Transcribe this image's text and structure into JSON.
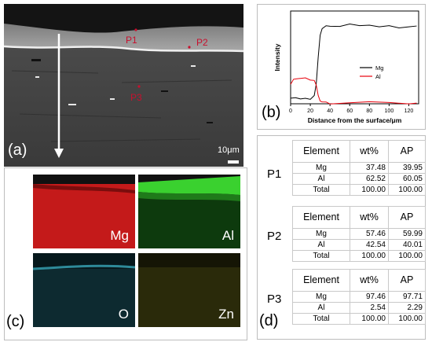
{
  "panel_a": {
    "letter": "(a)",
    "points": [
      "P1",
      "P2",
      "P3"
    ],
    "scale_bar": "10μm"
  },
  "panel_b": {
    "letter": "(b)"
  },
  "chart_data": {
    "type": "line",
    "xlabel": "Distance from the surface/μm",
    "ylabel": "Intensity",
    "xlim": [
      0,
      130
    ],
    "xticks": [
      0,
      20,
      40,
      60,
      80,
      100,
      120
    ],
    "legend_position": "center-right",
    "series": [
      {
        "name": "Mg",
        "color": "#000000",
        "x": [
          0,
          5,
          10,
          15,
          20,
          24,
          26,
          28,
          30,
          32,
          36,
          40,
          50,
          60,
          70,
          80,
          90,
          100,
          110,
          120,
          128
        ],
        "y": [
          0.06,
          0.07,
          0.06,
          0.07,
          0.06,
          0.08,
          0.2,
          0.5,
          0.75,
          0.82,
          0.83,
          0.84,
          0.83,
          0.85,
          0.83,
          0.84,
          0.83,
          0.85,
          0.83,
          0.84,
          0.83
        ]
      },
      {
        "name": "Al",
        "color": "#e8000b",
        "x": [
          0,
          3,
          6,
          10,
          15,
          20,
          24,
          26,
          28,
          30,
          32,
          36,
          40,
          60,
          80,
          100,
          120,
          128
        ],
        "y": [
          0.2,
          0.27,
          0.28,
          0.27,
          0.28,
          0.26,
          0.24,
          0.2,
          0.1,
          0.04,
          0.02,
          0.01,
          0.01,
          0.01,
          0.01,
          0.01,
          0.01,
          0.01
        ]
      }
    ]
  },
  "panel_c": {
    "letter": "(c)",
    "maps": [
      {
        "element": "Mg",
        "color": "#c41a1a"
      },
      {
        "element": "Al",
        "color": "#22a81c"
      },
      {
        "element": "O",
        "color": "#1f5e6b"
      },
      {
        "element": "Zn",
        "color": "#6b6a1c"
      }
    ]
  },
  "panel_d": {
    "letter": "(d)",
    "headers": [
      "Element",
      "wt%",
      "AP"
    ],
    "points": [
      {
        "label": "P1",
        "rows": [
          [
            "Mg",
            "37.48",
            "39.95"
          ],
          [
            "Al",
            "62.52",
            "60.05"
          ],
          [
            "Total",
            "100.00",
            "100.00"
          ]
        ]
      },
      {
        "label": "P2",
        "rows": [
          [
            "Mg",
            "57.46",
            "59.99"
          ],
          [
            "Al",
            "42.54",
            "40.01"
          ],
          [
            "Total",
            "100.00",
            "100.00"
          ]
        ]
      },
      {
        "label": "P3",
        "rows": [
          [
            "Mg",
            "97.46",
            "97.71"
          ],
          [
            "Al",
            "2.54",
            "2.29"
          ],
          [
            "Total",
            "100.00",
            "100.00"
          ]
        ]
      }
    ]
  }
}
